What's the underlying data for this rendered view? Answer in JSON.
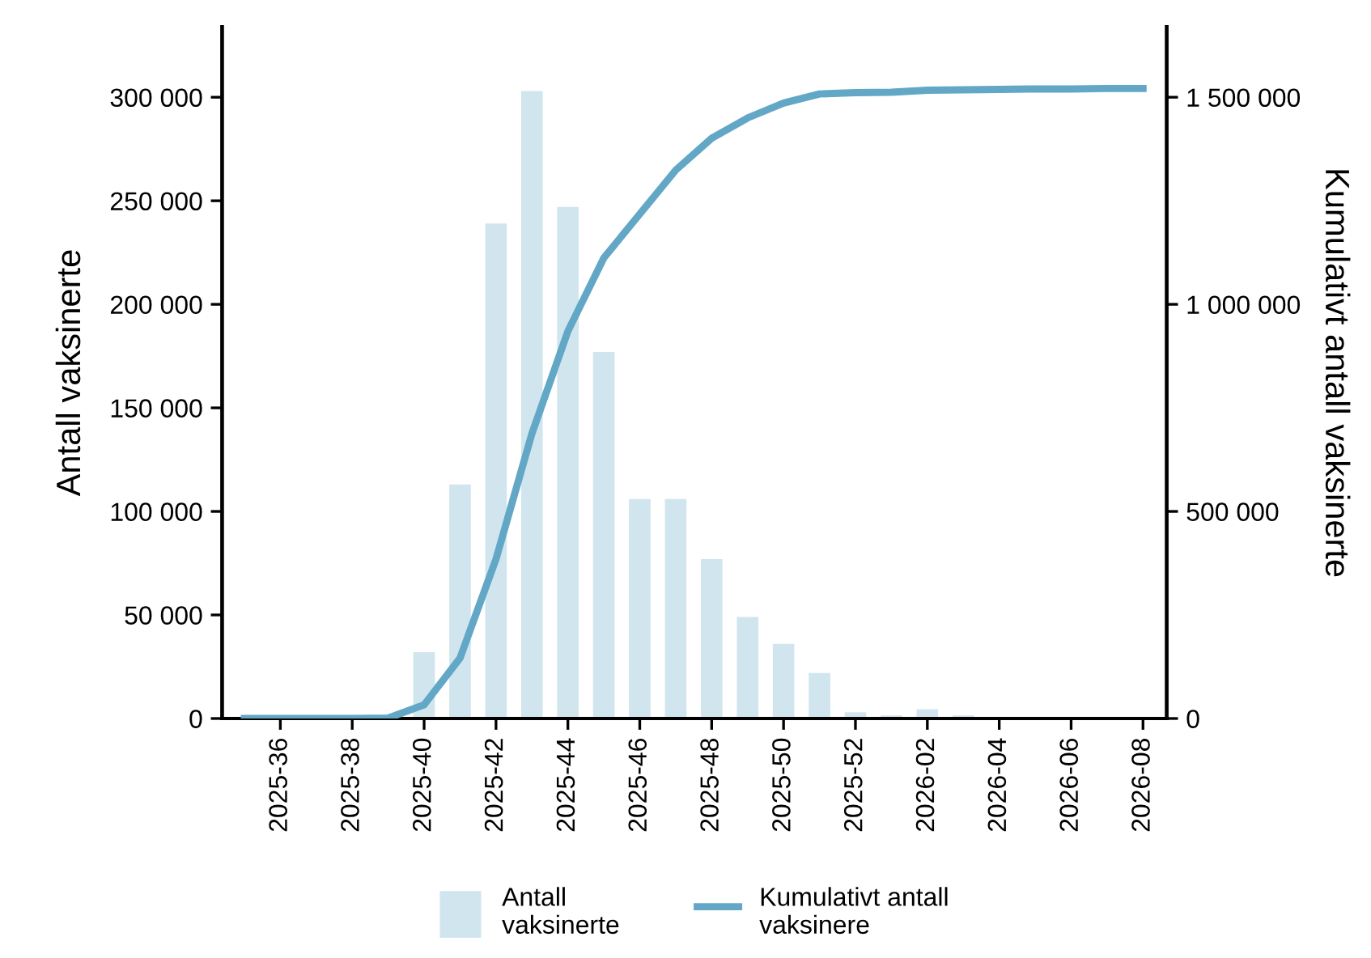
{
  "chart_data": {
    "type": "bar",
    "categories": [
      null,
      "2025-36",
      null,
      "2025-38",
      null,
      "2025-40",
      null,
      "2025-42",
      null,
      "2025-44",
      null,
      "2025-46",
      null,
      "2025-48",
      null,
      "2025-50",
      null,
      "2025-52",
      null,
      "2026-02",
      null,
      "2026-04",
      null,
      "2026-06",
      null,
      "2026-08"
    ],
    "series": [
      {
        "name": "Antall\nvaksinerte",
        "color": "#d1e5ef",
        "values": [
          0,
          0,
          0,
          0,
          1000,
          32000,
          113000,
          239000,
          303000,
          247000,
          177000,
          106000,
          106000,
          77000,
          49000,
          36000,
          22000,
          3000,
          1500,
          4500,
          1500,
          500,
          0,
          0,
          0,
          0
        ]
      },
      {
        "name": "Kumulativt antall\nvaksinere",
        "type": "line",
        "axis": "y2",
        "color": "#62a8c6",
        "values": [
          0,
          0,
          0,
          0,
          1000,
          33000,
          146000,
          385000,
          688000,
          935000,
          1112000,
          1218000,
          1324000,
          1401000,
          1450000,
          1486000,
          1508000,
          1511000,
          1512000,
          1517000,
          1518000,
          1519000,
          1520000,
          1520000,
          1521000,
          1521000
        ]
      }
    ],
    "ylabel": "Antall vaksinerte",
    "y2label": "Kumulativt antall vaksinerte",
    "ylim": [
      0,
      334000
    ],
    "yticks": [
      {
        "value": 0,
        "label": "0"
      },
      {
        "value": 50000,
        "label": "50 000"
      },
      {
        "value": 100000,
        "label": "100 000"
      },
      {
        "value": 150000,
        "label": "150 000"
      },
      {
        "value": 200000,
        "label": "200 000"
      },
      {
        "value": 250000,
        "label": "250 000"
      },
      {
        "value": 300000,
        "label": "300 000"
      }
    ],
    "y2lim": [
      0,
      1670000
    ],
    "y2ticks": [
      {
        "value": 0,
        "label": "0"
      },
      {
        "value": 500000,
        "label": "500 000"
      },
      {
        "value": 1000000,
        "label": "1 000 000"
      },
      {
        "value": 1500000,
        "label": "1 500 000"
      }
    ],
    "legend": "bottom",
    "grid": false
  }
}
